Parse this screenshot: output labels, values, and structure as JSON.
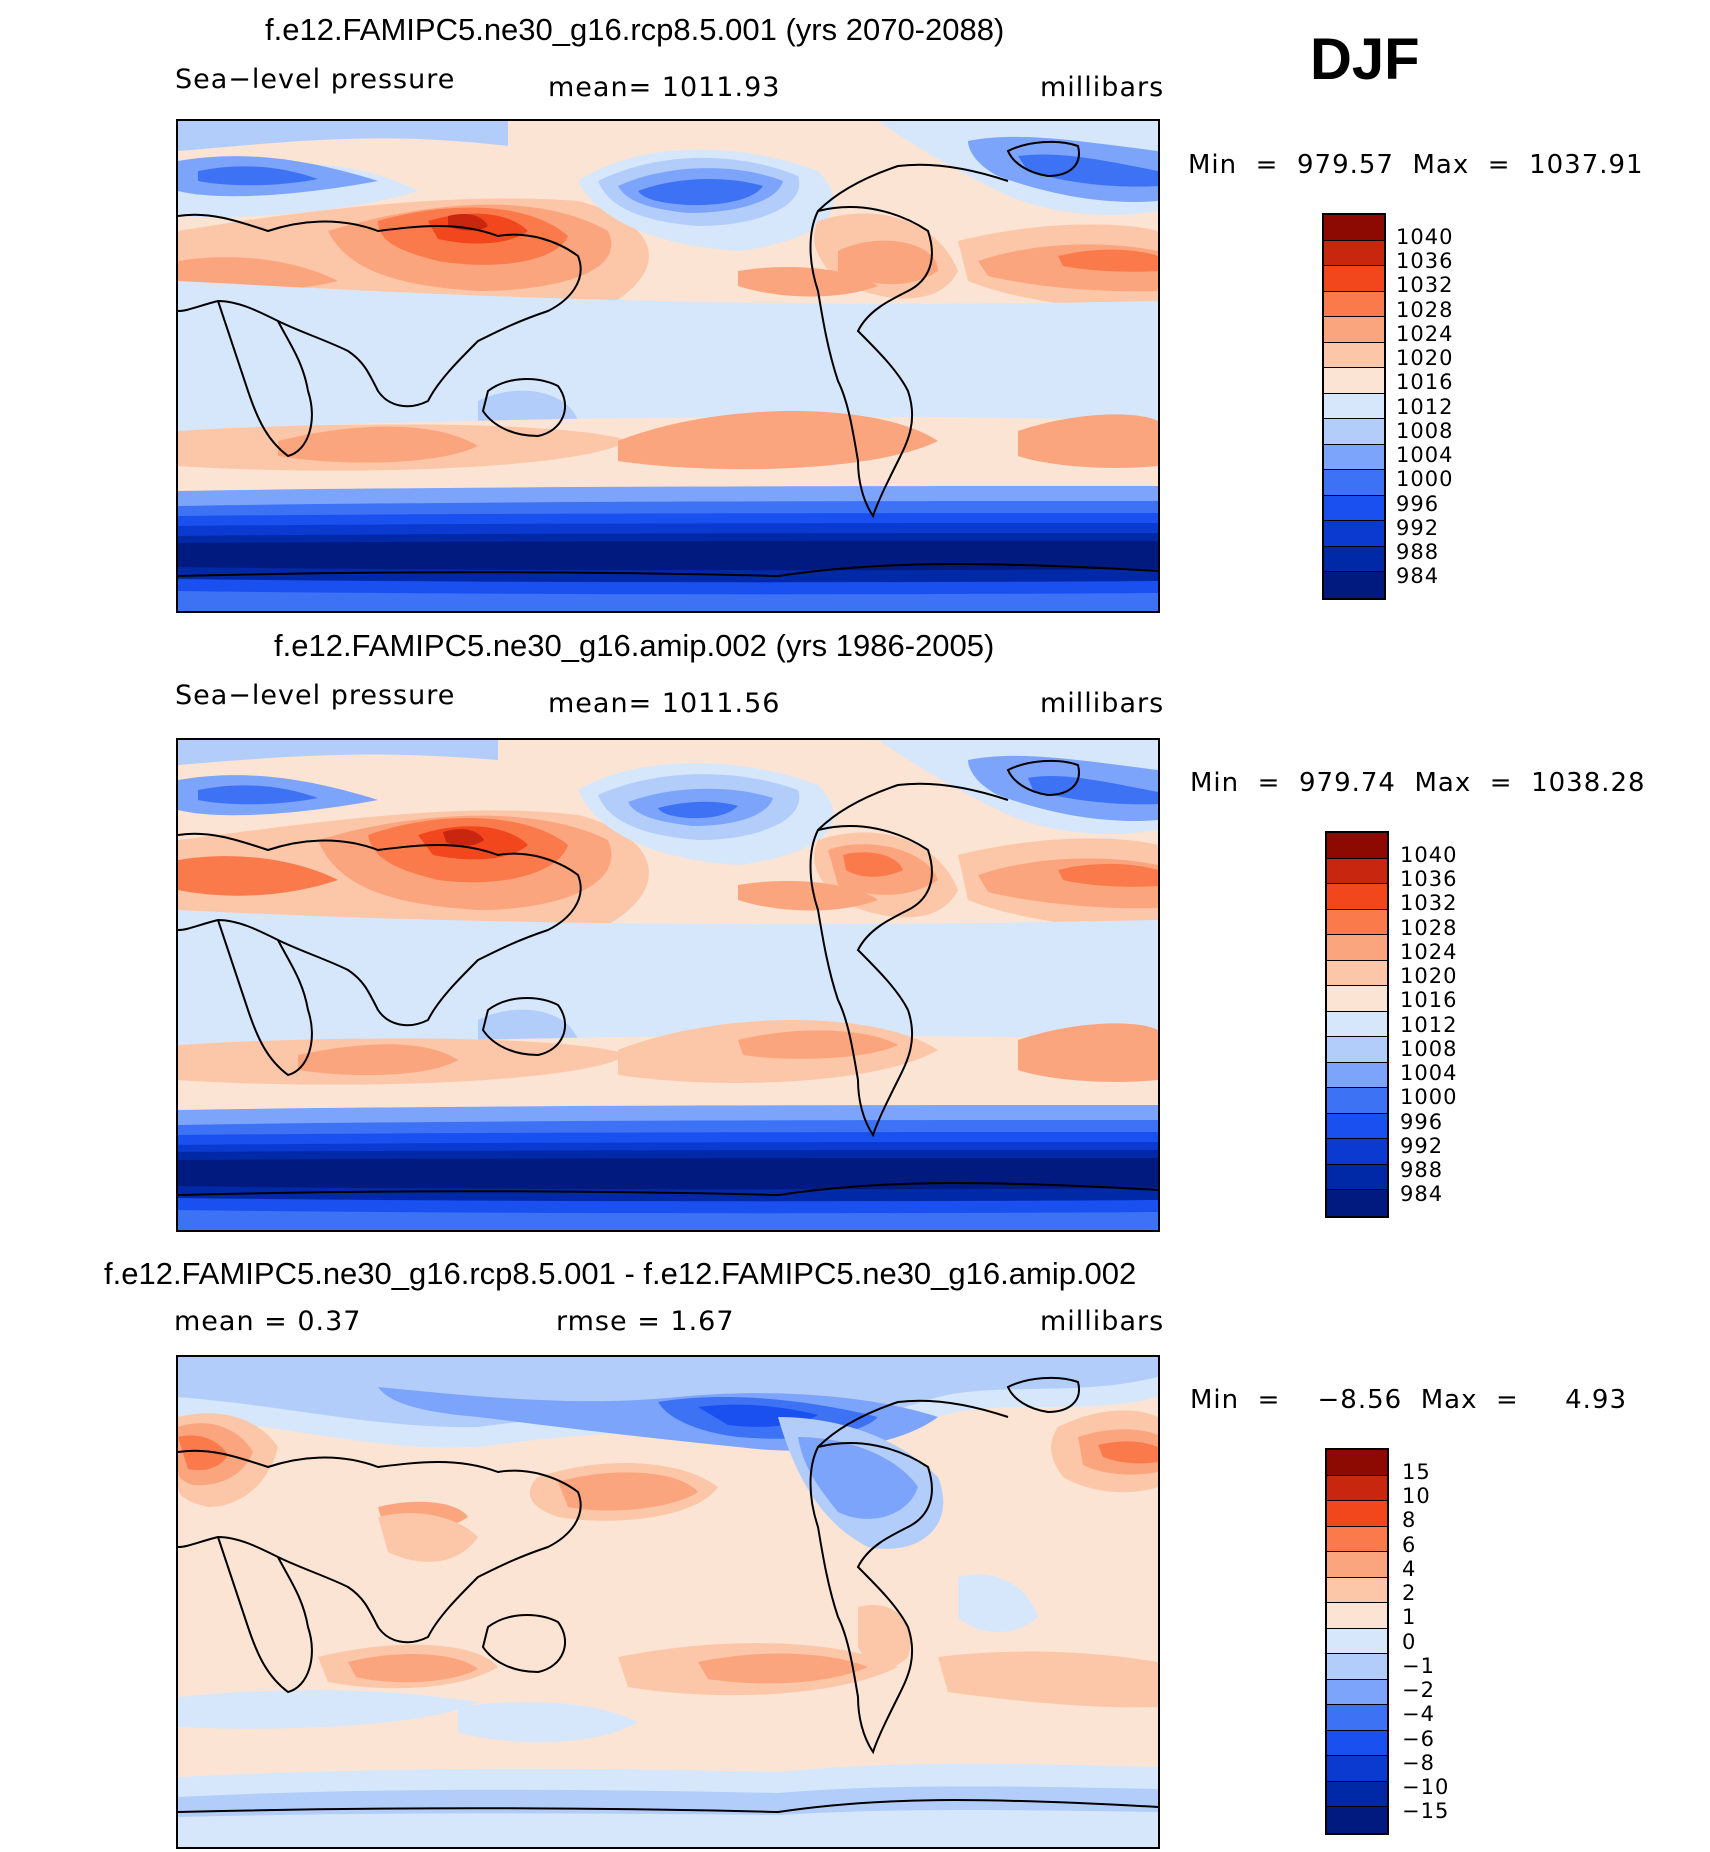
{
  "season": "DJF",
  "colors": {
    "sequential": [
      "#001a80",
      "#0029a8",
      "#0a3ad0",
      "#1a50f0",
      "#3d72f5",
      "#7ca4fa",
      "#b3cdfb",
      "#d6e7fb",
      "#fbe4d3",
      "#fcc7a8",
      "#fba57f",
      "#fa7a4b",
      "#f2461d",
      "#c8260e",
      "#8d0a03"
    ]
  },
  "panels": [
    {
      "title": "f.e12.FAMIPC5.ne30_g16.rcp8.5.001 (yrs 2070-2088)",
      "left_label": "Sea−level pressure",
      "center_label": "mean=  1011.93",
      "units": "millibars",
      "minmax": "Min  =  979.57  Max  =  1037.91",
      "colorbar_labels": [
        "1040",
        "1036",
        "1032",
        "1028",
        "1024",
        "1020",
        "1016",
        "1012",
        "1008",
        "1004",
        "1000",
        "996",
        "992",
        "988",
        "984"
      ]
    },
    {
      "title": "f.e12.FAMIPC5.ne30_g16.amip.002 (yrs 1986-2005)",
      "left_label": "Sea−level pressure",
      "center_label": "mean=  1011.56",
      "units": "millibars",
      "minmax": "Min  =  979.74  Max  =  1038.28",
      "colorbar_labels": [
        "1040",
        "1036",
        "1032",
        "1028",
        "1024",
        "1020",
        "1016",
        "1012",
        "1008",
        "1004",
        "1000",
        "996",
        "992",
        "988",
        "984"
      ]
    },
    {
      "title": "f.e12.FAMIPC5.ne30_g16.rcp8.5.001 - f.e12.FAMIPC5.ne30_g16.amip.002",
      "left_label": "mean =     0.37",
      "center_label": "rmse =     1.67",
      "units": "millibars",
      "minmax": "Min  =    −8.56  Max  =     4.93",
      "colorbar_labels": [
        "15",
        "10",
        "8",
        "6",
        "4",
        "2",
        "1",
        "0",
        "−1",
        "−2",
        "−4",
        "−6",
        "−8",
        "−10",
        "−15"
      ]
    }
  ]
}
